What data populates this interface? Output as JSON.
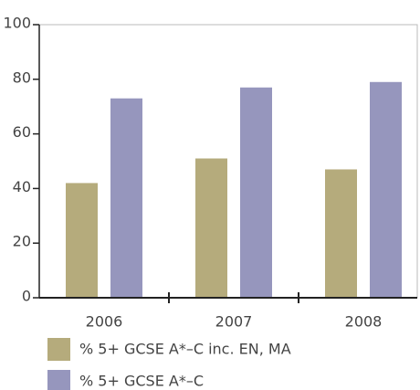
{
  "chart_data": {
    "type": "bar",
    "categories": [
      "2006",
      "2007",
      "2008"
    ],
    "series": [
      {
        "name": "% 5+ GCSE A*–C inc. EN, MA",
        "color": "#b5ab7c",
        "values": [
          42,
          51,
          47
        ]
      },
      {
        "name": "% 5+ GCSE A*–C",
        "color": "#9696bd",
        "values": [
          73,
          77,
          79
        ]
      }
    ],
    "ylim": [
      0,
      100
    ],
    "yticks": [
      0,
      20,
      40,
      60,
      80,
      100
    ],
    "grid": false,
    "legend": "bottom"
  }
}
